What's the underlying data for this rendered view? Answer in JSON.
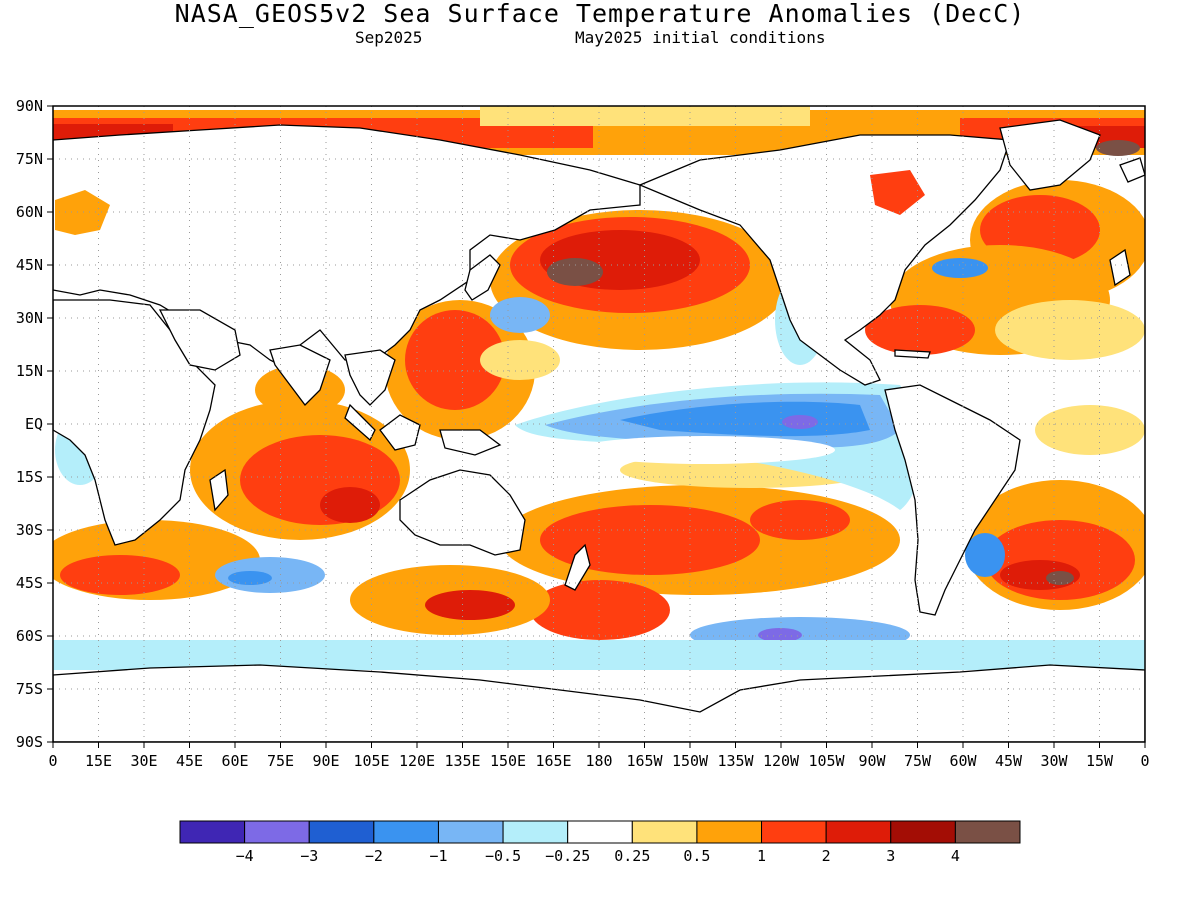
{
  "title": "NASA_GEOS5v2 Sea Surface Temperature Anomalies (DecC)",
  "subtitle_left": "Sep2025",
  "subtitle_right": "May2025 initial conditions",
  "colors": {
    "land": "#ffffff",
    "coast": "#000000",
    "frame": "#000000",
    "grid": "#9a9a9a"
  },
  "map": {
    "lon_labels": [
      "0",
      "15E",
      "30E",
      "45E",
      "60E",
      "75E",
      "90E",
      "105E",
      "120E",
      "135E",
      "150E",
      "165E",
      "180",
      "165W",
      "150W",
      "135W",
      "120W",
      "105W",
      "90W",
      "75W",
      "60W",
      "45W",
      "30W",
      "15W",
      "0"
    ],
    "lat_labels": [
      "90N",
      "75N",
      "60N",
      "45N",
      "30N",
      "15N",
      "EQ",
      "15S",
      "30S",
      "45S",
      "60S",
      "75S",
      "90S"
    ]
  },
  "legend": {
    "bins": [
      {
        "color": "#3f26b4"
      },
      {
        "color": "#7d6ae6"
      },
      {
        "color": "#1f5fd2"
      },
      {
        "color": "#3a93f0"
      },
      {
        "color": "#78b6f5"
      },
      {
        "color": "#b4eefa"
      },
      {
        "color": "#ffffff"
      },
      {
        "color": "#ffe27a"
      },
      {
        "color": "#ffa20a"
      },
      {
        "color": "#ff3e10"
      },
      {
        "color": "#de1c08"
      },
      {
        "color": "#a30d05"
      },
      {
        "color": "#7a5045"
      }
    ],
    "labels": [
      "−4",
      "−3",
      "−2",
      "−1",
      "−0.5",
      "−0.25",
      "0.25",
      "0.5",
      "1",
      "2",
      "3",
      "4"
    ]
  }
}
